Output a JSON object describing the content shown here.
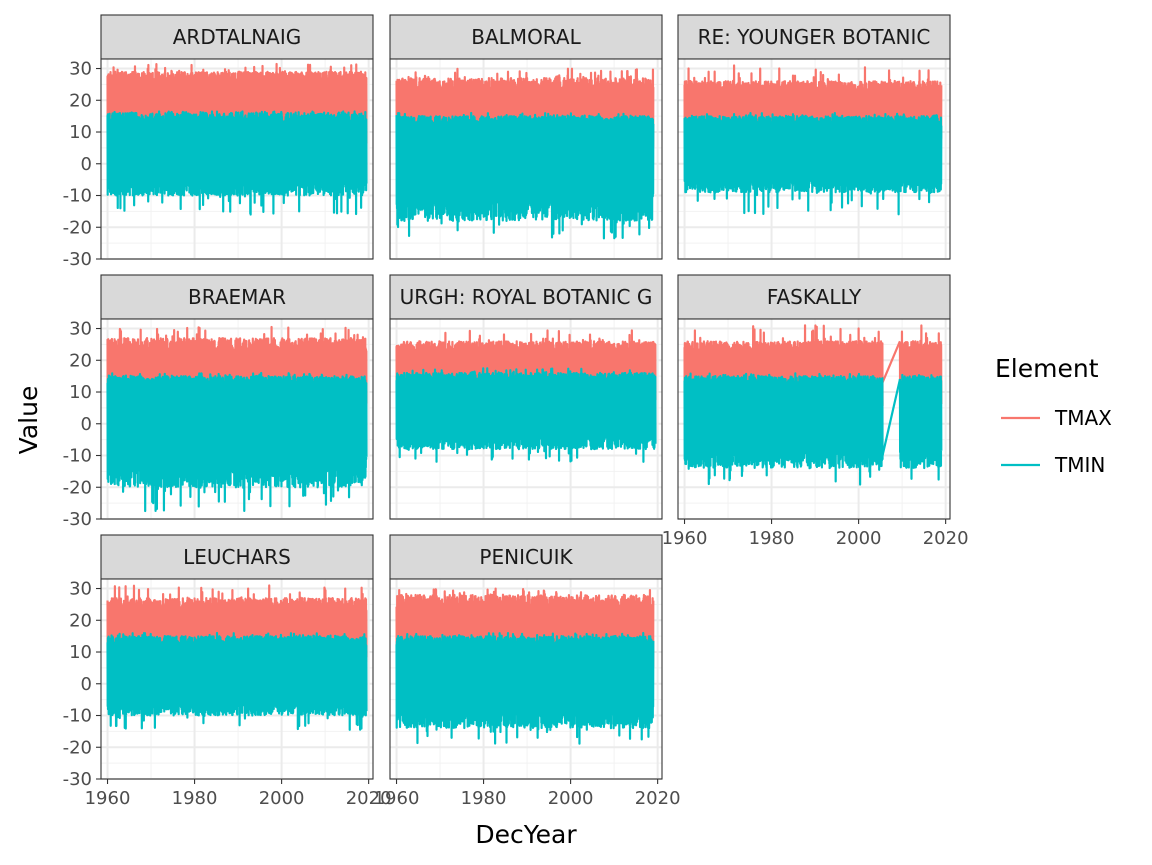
{
  "chart_data": {
    "type": "line",
    "facet_type": "wrap",
    "xlabel": "DecYear",
    "ylabel": "Value",
    "xlim": [
      1958.5,
      2021
    ],
    "ylim": [
      -30,
      33
    ],
    "xticks": [
      1960,
      1980,
      2000,
      2020
    ],
    "xtick_labels": [
      "1960",
      "1980",
      "2000",
      "2020"
    ],
    "yticks": [
      -30,
      -20,
      -10,
      0,
      10,
      20,
      30
    ],
    "ytick_labels": [
      "-30",
      "-20",
      "-10",
      "0",
      "10",
      "20",
      "30"
    ],
    "grid": true,
    "legend": {
      "title": "Element",
      "position": "right",
      "items": [
        {
          "name": "TMAX",
          "color": "#F8766D"
        },
        {
          "name": "TMIN",
          "color": "#00BFC4"
        }
      ]
    },
    "panels": [
      {
        "title": "ARDTALNAIG",
        "x_range": [
          1960,
          2019.5
        ],
        "segments": [],
        "series": [
          {
            "name": "TMAX",
            "color": "#F8766D",
            "band_low": [
              5,
              8
            ],
            "band_high": [
              25,
              29
            ],
            "extreme_max": 31.5,
            "extreme_min": 4
          },
          {
            "name": "TMIN",
            "color": "#00BFC4",
            "band_low": [
              -10,
              -4
            ],
            "band_high": [
              12,
              16
            ],
            "extreme_max": 16.5,
            "extreme_min": -16
          }
        ]
      },
      {
        "title": "BALMORAL",
        "x_range": [
          1960,
          2019
        ],
        "segments": [],
        "series": [
          {
            "name": "TMAX",
            "color": "#F8766D",
            "band_low": [
              4,
              8
            ],
            "band_high": [
              22,
              27
            ],
            "extreme_max": 30,
            "extreme_min": 3
          },
          {
            "name": "TMIN",
            "color": "#00BFC4",
            "band_low": [
              -18,
              -9
            ],
            "band_high": [
              12,
              15
            ],
            "extreme_max": 16,
            "extreme_min": -23.5
          }
        ]
      },
      {
        "title": "RE: YOUNGER BOTANIC",
        "x_range": [
          1960,
          2019
        ],
        "segments": [],
        "series": [
          {
            "name": "TMAX",
            "color": "#F8766D",
            "band_low": [
              6,
              9
            ],
            "band_high": [
              22,
              26
            ],
            "extreme_max": 31,
            "extreme_min": 5
          },
          {
            "name": "TMIN",
            "color": "#00BFC4",
            "band_low": [
              -9,
              -4
            ],
            "band_high": [
              12,
              15
            ],
            "extreme_max": 16,
            "extreme_min": -16
          }
        ]
      },
      {
        "title": "BRAEMAR",
        "x_range": [
          1960,
          2019.5
        ],
        "segments": [],
        "series": [
          {
            "name": "TMAX",
            "color": "#F8766D",
            "band_low": [
              4,
              8
            ],
            "band_high": [
              22,
              27
            ],
            "extreme_max": 30.5,
            "extreme_min": 3
          },
          {
            "name": "TMIN",
            "color": "#00BFC4",
            "band_low": [
              -20,
              -10
            ],
            "band_high": [
              12,
              15
            ],
            "extreme_max": 16,
            "extreme_min": -27.5
          }
        ]
      },
      {
        "title": "URGH: ROYAL BOTANIC G",
        "x_range": [
          1960,
          2019.5
        ],
        "segments": [],
        "series": [
          {
            "name": "TMAX",
            "color": "#F8766D",
            "band_low": [
              7,
              10
            ],
            "band_high": [
              22,
              26
            ],
            "extreme_max": 29.5,
            "extreme_min": 5
          },
          {
            "name": "TMIN",
            "color": "#00BFC4",
            "band_low": [
              -8,
              -3
            ],
            "band_high": [
              13,
              16
            ],
            "extreme_max": 17.5,
            "extreme_min": -12
          }
        ]
      },
      {
        "title": "FASKALLY",
        "x_range": [
          1960,
          2019
        ],
        "segments": [
          [
            1960,
            2005.5
          ],
          [
            2009.5,
            2019
          ]
        ],
        "series": [
          {
            "name": "TMAX",
            "color": "#F8766D",
            "band_low": [
              5,
              9
            ],
            "band_high": [
              22,
              26
            ],
            "extreme_max": 31,
            "extreme_min": 4
          },
          {
            "name": "TMIN",
            "color": "#00BFC4",
            "band_low": [
              -14,
              -7
            ],
            "band_high": [
              12,
              15
            ],
            "extreme_max": 16,
            "extreme_min": -19.5
          }
        ]
      },
      {
        "title": "LEUCHARS",
        "x_range": [
          1960,
          2019.5
        ],
        "segments": [],
        "series": [
          {
            "name": "TMAX",
            "color": "#F8766D",
            "band_low": [
              6,
              9
            ],
            "band_high": [
              23,
              27
            ],
            "extreme_max": 31,
            "extreme_min": 5
          },
          {
            "name": "TMIN",
            "color": "#00BFC4",
            "band_low": [
              -10,
              -5
            ],
            "band_high": [
              12,
              15
            ],
            "extreme_max": 16,
            "extreme_min": -14.5
          }
        ]
      },
      {
        "title": "PENICUIK",
        "x_range": [
          1960,
          2019
        ],
        "segments": [],
        "series": [
          {
            "name": "TMAX",
            "color": "#F8766D",
            "band_low": [
              4,
              8
            ],
            "band_high": [
              23,
              28
            ],
            "extreme_max": 30,
            "extreme_min": 3
          },
          {
            "name": "TMIN",
            "color": "#00BFC4",
            "band_low": [
              -14,
              -7
            ],
            "band_high": [
              12,
              15
            ],
            "extreme_max": 16,
            "extreme_min": -19
          }
        ]
      }
    ]
  }
}
